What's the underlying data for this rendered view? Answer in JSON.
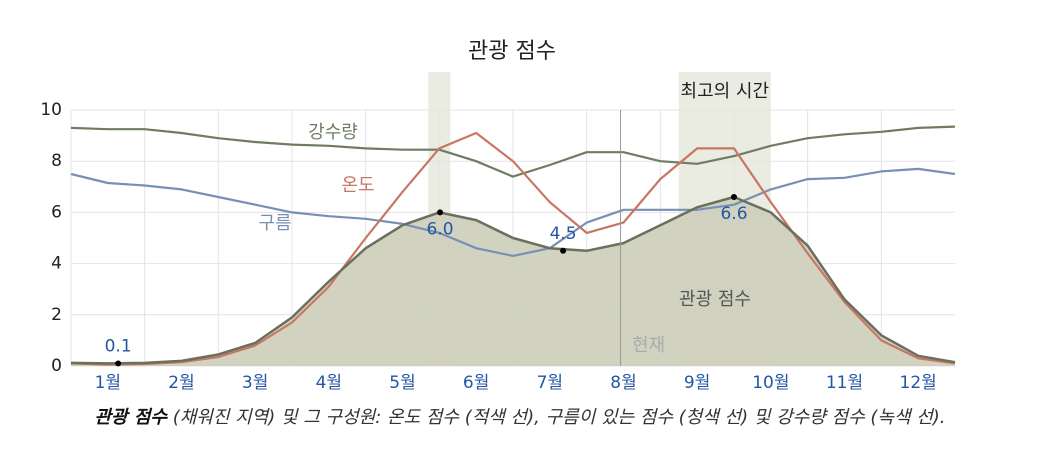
{
  "chart_data": {
    "type": "line",
    "title": "관광 점수",
    "x": [
      0.5,
      1,
      1.5,
      2,
      2.5,
      3,
      3.5,
      4,
      4.5,
      5,
      5.5,
      6,
      6.5,
      7,
      7.5,
      8,
      8.5,
      9,
      9.5,
      10,
      10.5,
      11,
      11.5,
      12,
      12.5
    ],
    "xlim": [
      0.5,
      12.5
    ],
    "xticks": [
      {
        "value": 1,
        "label": "1월"
      },
      {
        "value": 2,
        "label": "2월"
      },
      {
        "value": 3,
        "label": "3월"
      },
      {
        "value": 4,
        "label": "4월"
      },
      {
        "value": 5,
        "label": "5월"
      },
      {
        "value": 6,
        "label": "6월"
      },
      {
        "value": 7,
        "label": "7월"
      },
      {
        "value": 8,
        "label": "8월"
      },
      {
        "value": 9,
        "label": "9월"
      },
      {
        "value": 10,
        "label": "10월"
      },
      {
        "value": 11,
        "label": "11월"
      },
      {
        "value": 12,
        "label": "12월"
      }
    ],
    "ylim": [
      0,
      10
    ],
    "yticks": [
      0,
      2,
      4,
      6,
      8,
      10
    ],
    "grid": true,
    "series": [
      {
        "name": "관광 점수",
        "color": "#6b6f5e",
        "fill": "#cfd1bd",
        "values": [
          0.12,
          0.1,
          0.12,
          0.2,
          0.45,
          0.9,
          1.9,
          3.3,
          4.6,
          5.5,
          6.0,
          5.7,
          5.0,
          4.6,
          4.5,
          4.8,
          5.5,
          6.2,
          6.6,
          6.0,
          4.7,
          2.6,
          1.2,
          0.4,
          0.15
        ]
      },
      {
        "name": "온도",
        "color": "#c87663",
        "values": [
          0.1,
          0.05,
          0.08,
          0.15,
          0.35,
          0.8,
          1.7,
          3.1,
          5.0,
          6.8,
          8.5,
          9.1,
          8.0,
          6.4,
          5.2,
          5.6,
          7.3,
          8.5,
          8.5,
          6.4,
          4.4,
          2.5,
          1.0,
          0.3,
          0.1
        ]
      },
      {
        "name": "구름",
        "color": "#7890b5",
        "values": [
          7.5,
          7.15,
          7.05,
          6.9,
          6.6,
          6.3,
          6.0,
          5.85,
          5.75,
          5.55,
          5.2,
          4.6,
          4.3,
          4.6,
          5.6,
          6.1,
          6.1,
          6.1,
          6.3,
          6.9,
          7.3,
          7.35,
          7.6,
          7.7,
          7.5
        ]
      },
      {
        "name": "강수량",
        "color": "#6e7d62",
        "values": [
          9.3,
          9.25,
          9.25,
          9.1,
          8.9,
          8.75,
          8.65,
          8.6,
          8.5,
          8.45,
          8.45,
          8.0,
          7.4,
          7.85,
          8.35,
          8.35,
          8.0,
          7.9,
          8.2,
          8.6,
          8.9,
          9.05,
          9.15,
          9.3,
          9.35
        ]
      }
    ],
    "markers": {
      "x": [
        1.14,
        5.51,
        7.18,
        9.5
      ],
      "values": [
        0.1,
        6,
        4.5,
        6.6
      ],
      "value_labels": [
        "0.1",
        "6.0",
        "4.5",
        "6.6"
      ]
    },
    "highlights": [
      {
        "xlim": [
          5.35,
          5.65
        ]
      },
      {
        "xlim": [
          8.75,
          10.0
        ],
        "label": "최고의 시간"
      }
    ],
    "now": {
      "x": 7.96,
      "label": "현재"
    },
    "caption": {
      "emphasis": "관광 점수",
      "text": " (채워진 지역) 및 그 구성원: 온도 점수 (적색 선), 구름이 있는 점수 (청색 선) 및 강수량 점수 (녹색 선)."
    }
  }
}
